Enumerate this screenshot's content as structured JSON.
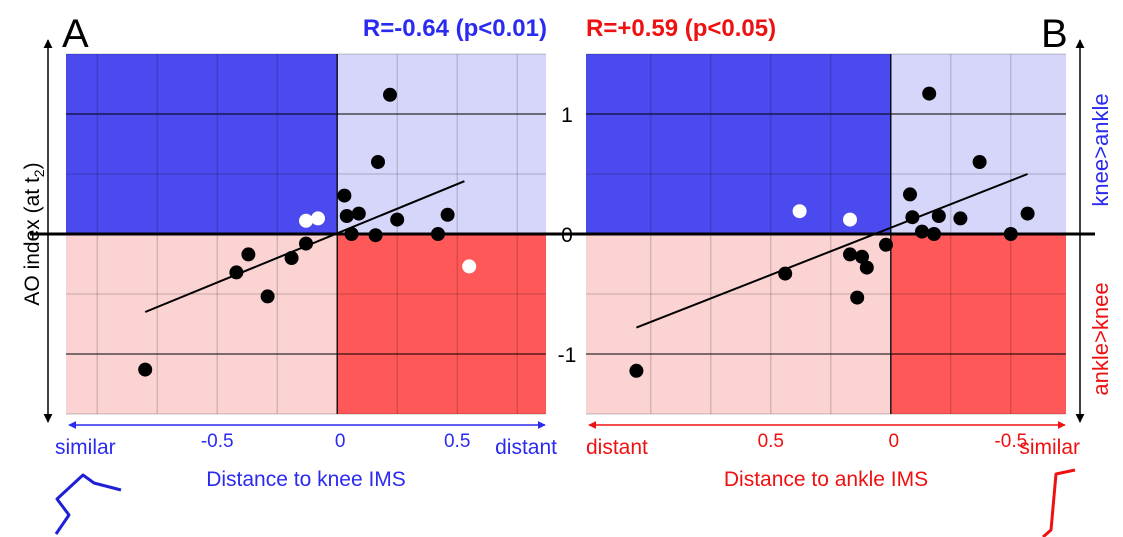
{
  "colors": {
    "blue_dark": "#4a4aee",
    "blue_light": "#d6d6fb",
    "red_dark": "#ff5858",
    "red_light": "#fbd3d3",
    "blue_text": "#2a2af0",
    "red_text": "#ee1111",
    "point_black": "#000000",
    "point_white": "#ffffff"
  },
  "y_axis": {
    "label_main": "AO index (at t",
    "label_sub": "2",
    "label_end": ")",
    "ticks": [
      {
        "value": 1,
        "label": "1"
      },
      {
        "value": 0,
        "label": "0"
      },
      {
        "value": -1,
        "label": "-1"
      }
    ],
    "right_label_top": "knee>ankle",
    "right_label_bottom": "ankle>knee"
  },
  "chart_data": [
    {
      "type": "scatter",
      "panel_letter": "A",
      "stat_label": "R=-0.64 (p<0.01)",
      "xlabel": "Distance to knee IMS",
      "x_left_word": "similar",
      "x_right_word": "distant",
      "x_ticks": [
        {
          "value": -0.5,
          "label": "-0.5"
        },
        {
          "value": 0,
          "label": "0"
        },
        {
          "value": 0.5,
          "label": "0.5"
        }
      ],
      "xlim": [
        -1.13,
        0.87
      ],
      "ylim": [
        -1.5,
        1.5
      ],
      "points_black": [
        {
          "x": -0.8,
          "y": -1.13
        },
        {
          "x": -0.42,
          "y": -0.32
        },
        {
          "x": -0.37,
          "y": -0.17
        },
        {
          "x": -0.29,
          "y": -0.52
        },
        {
          "x": -0.19,
          "y": -0.2
        },
        {
          "x": -0.13,
          "y": -0.08
        },
        {
          "x": 0.03,
          "y": 0.32
        },
        {
          "x": 0.04,
          "y": 0.15
        },
        {
          "x": 0.06,
          "y": 0.0
        },
        {
          "x": 0.09,
          "y": 0.17
        },
        {
          "x": 0.16,
          "y": -0.01
        },
        {
          "x": 0.17,
          "y": 0.6
        },
        {
          "x": 0.22,
          "y": 1.16
        },
        {
          "x": 0.25,
          "y": 0.12
        },
        {
          "x": 0.42,
          "y": 0.0
        },
        {
          "x": 0.46,
          "y": 0.16
        }
      ],
      "points_white": [
        {
          "x": -0.13,
          "y": 0.11
        },
        {
          "x": -0.08,
          "y": 0.13
        },
        {
          "x": 0.55,
          "y": -0.27
        }
      ],
      "regression": {
        "x1": -0.8,
        "y1": -0.65,
        "x2": 0.53,
        "y2": 0.44
      }
    },
    {
      "type": "scatter",
      "panel_letter": "B",
      "stat_label": "R=+0.59 (p<0.05)",
      "xlabel": "Distance to ankle IMS",
      "x_left_word": "distant",
      "x_right_word": "similar",
      "x_ticks": [
        {
          "value": 0.5,
          "label": "0.5"
        },
        {
          "value": 0,
          "label": "0"
        },
        {
          "value": -0.5,
          "label": "-0.5"
        }
      ],
      "x_reversed": true,
      "xlim": [
        -0.73,
        1.27
      ],
      "ylim": [
        -1.5,
        1.5
      ],
      "points_black": [
        {
          "x": 1.06,
          "y": -1.14
        },
        {
          "x": 0.44,
          "y": -0.33
        },
        {
          "x": 0.17,
          "y": -0.17
        },
        {
          "x": 0.14,
          "y": -0.53
        },
        {
          "x": 0.12,
          "y": -0.19
        },
        {
          "x": 0.1,
          "y": -0.28
        },
        {
          "x": 0.02,
          "y": -0.09
        },
        {
          "x": -0.08,
          "y": 0.33
        },
        {
          "x": -0.09,
          "y": 0.14
        },
        {
          "x": -0.13,
          "y": 0.02
        },
        {
          "x": -0.16,
          "y": 1.17
        },
        {
          "x": -0.18,
          "y": 0.0
        },
        {
          "x": -0.2,
          "y": 0.15
        },
        {
          "x": -0.29,
          "y": 0.13
        },
        {
          "x": -0.37,
          "y": 0.6
        },
        {
          "x": -0.5,
          "y": 0.0
        },
        {
          "x": -0.57,
          "y": 0.17
        }
      ],
      "points_white": [
        {
          "x": 0.38,
          "y": 0.19
        },
        {
          "x": 0.17,
          "y": 0.12
        }
      ],
      "regression": {
        "x1": 1.06,
        "y1": -0.78,
        "x2": -0.57,
        "y2": 0.5
      }
    }
  ]
}
